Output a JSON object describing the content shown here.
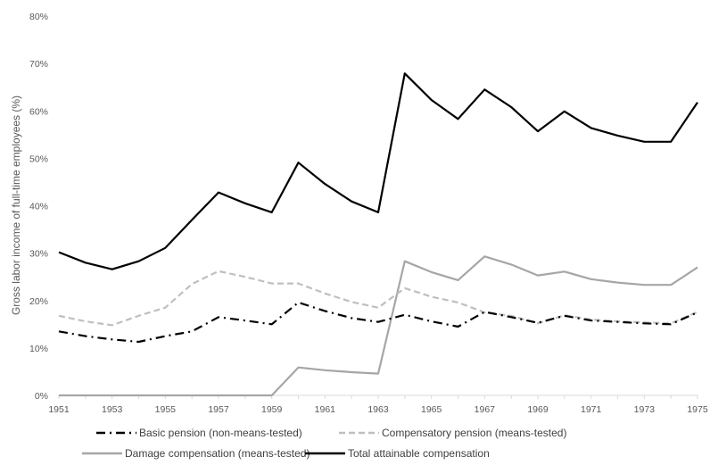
{
  "chart_data": {
    "type": "line",
    "title": "",
    "xlabel": "",
    "ylabel": "Gross labor income of full-time employees (%)",
    "ylim": [
      0,
      80
    ],
    "yticks": [
      "0%",
      "10%",
      "20%",
      "30%",
      "40%",
      "50%",
      "60%",
      "70%",
      "80%"
    ],
    "xticks": [
      "1951",
      "1953",
      "1955",
      "1957",
      "1959",
      "1961",
      "1963",
      "1965",
      "1967",
      "1969",
      "1971",
      "1973",
      "1975"
    ],
    "x": [
      1951,
      1952,
      1953,
      1954,
      1955,
      1956,
      1957,
      1958,
      1959,
      1960,
      1961,
      1962,
      1963,
      1964,
      1965,
      1966,
      1967,
      1968,
      1969,
      1970,
      1971,
      1972,
      1973,
      1974,
      1975
    ],
    "grid": false,
    "legend_position": "bottom",
    "series": [
      {
        "name": "Basic pension (non-means-tested)",
        "color": "#000000",
        "dash": "dash-dot",
        "values": [
          13.5,
          12.5,
          11.8,
          11.3,
          12.5,
          13.5,
          16.5,
          15.8,
          15.0,
          19.6,
          17.8,
          16.3,
          15.5,
          17.0,
          15.6,
          14.5,
          17.6,
          16.5,
          15.3,
          16.8,
          15.8,
          15.5,
          15.2,
          15.0,
          17.5
        ]
      },
      {
        "name": "Compensatory pension (means-tested)",
        "color": "#bfbfbf",
        "dash": "dashed",
        "values": [
          16.8,
          15.6,
          14.8,
          16.8,
          18.5,
          23.5,
          26.2,
          25.0,
          23.6,
          23.6,
          21.5,
          19.7,
          18.5,
          22.6,
          20.8,
          19.6,
          17.5,
          16.8,
          15.2,
          16.9,
          16.0,
          15.6,
          15.4,
          15.2,
          17.6
        ]
      },
      {
        "name": "Damage compensation (means-tested)",
        "color": "#a6a6a6",
        "dash": "solid",
        "values": [
          0,
          0,
          0,
          0,
          0,
          0,
          0,
          0,
          0,
          5.9,
          5.3,
          4.9,
          4.6,
          28.3,
          26.0,
          24.3,
          29.3,
          27.6,
          25.3,
          26.1,
          24.5,
          23.8,
          23.3,
          23.3,
          27.0
        ]
      },
      {
        "name": "Total attainable compensation",
        "color": "#000000",
        "dash": "solid",
        "values": [
          30.2,
          28.0,
          26.6,
          28.3,
          31.1,
          37.0,
          42.8,
          40.5,
          38.6,
          49.1,
          44.6,
          40.9,
          38.6,
          67.9,
          62.3,
          58.3,
          64.5,
          60.8,
          55.7,
          59.9,
          56.4,
          54.8,
          53.5,
          53.5,
          61.8
        ]
      }
    ]
  }
}
